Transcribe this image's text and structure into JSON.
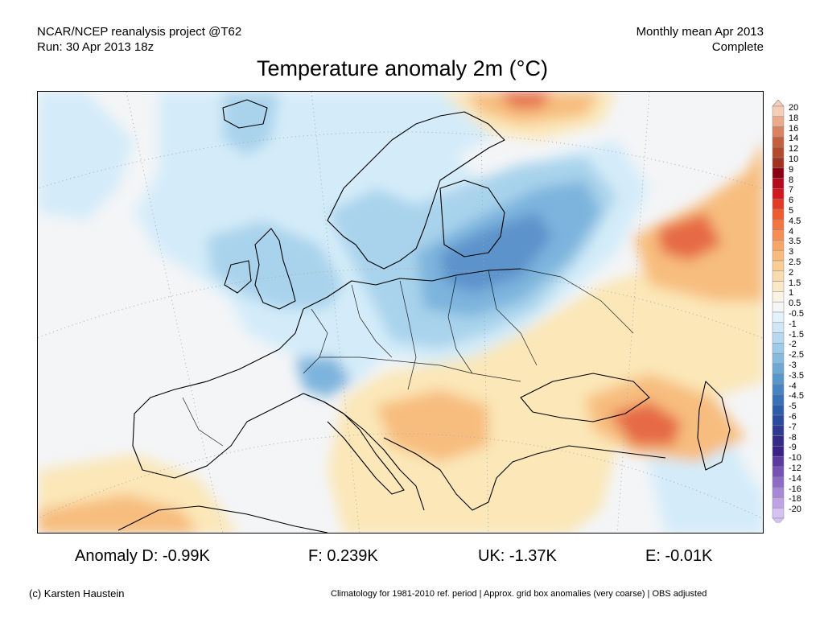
{
  "header": {
    "source": "NCAR/NCEP reanalysis project @T62",
    "run": "Run: 30 Apr 2013 18z",
    "period": "Monthly mean Apr 2013",
    "status": "Complete"
  },
  "title": "Temperature anomaly 2m (°C)",
  "map": {
    "region": "Europe",
    "colors": {
      "ocean_neutral": "#f4f5f7",
      "light_blue": "#d4ecf9",
      "mid_blue": "#a9d3ec",
      "blue": "#7db4dd",
      "deep_blue": "#5b93cb",
      "light_orange": "#fbe7b8",
      "orange": "#f7bd7e",
      "deep_orange": "#ef8755",
      "red_orange": "#e66b45"
    }
  },
  "colorbar": {
    "labels": [
      "20",
      "18",
      "16",
      "14",
      "12",
      "10",
      "9",
      "8",
      "7",
      "6",
      "5",
      "4.5",
      "4",
      "3.5",
      "3",
      "2.5",
      "2",
      "1.5",
      "1",
      "0.5",
      "-0.5",
      "-1",
      "-1.5",
      "-2",
      "-2.5",
      "-3",
      "-3.5",
      "-4",
      "-4.5",
      "-5",
      "-6",
      "-7",
      "-8",
      "-9",
      "-10",
      "-12",
      "-14",
      "-16",
      "-18",
      "-20"
    ],
    "colors": [
      "#f6cdb7",
      "#ebaa8a",
      "#d98362",
      "#c46040",
      "#b24a2c",
      "#a13322",
      "#8c0014",
      "#b30b1b",
      "#d3191f",
      "#e33a26",
      "#ee5a31",
      "#f37542",
      "#f68e55",
      "#f8a568",
      "#f9ba7d",
      "#f9cd94",
      "#f9dcae",
      "#fbe8c7",
      "#fbf2e4",
      "#f6f6f6",
      "#e4f3fb",
      "#cfe7f6",
      "#b6d9ef",
      "#9ecbe8",
      "#86bbe0",
      "#6ea9d6",
      "#5897cb",
      "#4784c1",
      "#3871b6",
      "#2c5ea8",
      "#2b4c9e",
      "#2f3b91",
      "#332c84",
      "#3a2387",
      "#5d3a9e",
      "#7652b4",
      "#8d6cc8",
      "#a688d8",
      "#bea4e6",
      "#d6c2f2"
    ]
  },
  "stats": [
    {
      "label": "Anomaly D:",
      "value": "-0.99K"
    },
    {
      "label": "F:",
      "value": "0.239K"
    },
    {
      "label": "UK:",
      "value": "-1.37K"
    },
    {
      "label": "E:",
      "value": "-0.01K"
    }
  ],
  "footer": {
    "credit": "(c) Karsten Haustein",
    "note": "Climatology for 1981-2010 ref. period | Approx. grid box anomalies (very coarse) | OBS adjusted"
  }
}
